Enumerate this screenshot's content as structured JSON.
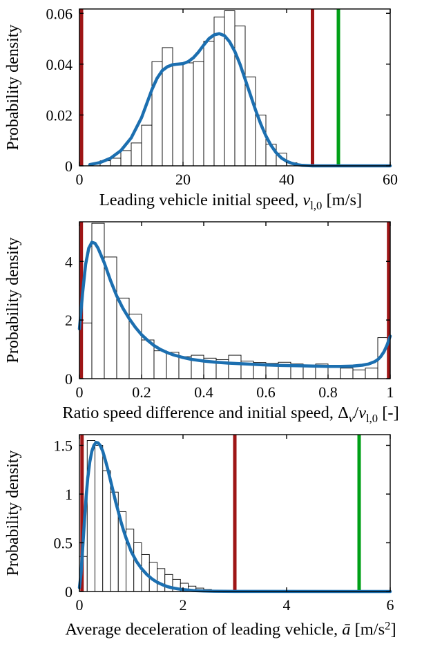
{
  "colors": {
    "kde": "#1c6fb0",
    "dark_red": "#9e1516",
    "green": "#00a017",
    "hist_fill": "#ffffff",
    "hist_stroke": "#000000",
    "axis": "#000000",
    "text": "#000000"
  },
  "chart_data": [
    {
      "type": "histogram+kde",
      "ylabel": "Probability density",
      "xlabel_segments": [
        {
          "t": "Leading vehicle initial speed, ",
          "s": "n"
        },
        {
          "t": "v",
          "s": "i"
        },
        {
          "t": "l,0",
          "s": "sub"
        },
        {
          "t": " [m/s]",
          "s": "n"
        }
      ],
      "xlim": [
        0,
        60
      ],
      "ylim": [
        0,
        0.0617
      ],
      "xticks": [
        0,
        20,
        40,
        60
      ],
      "xtick_labels": [
        "0",
        "20",
        "40",
        "60"
      ],
      "yticks": [
        0,
        0.02,
        0.04,
        0.06
      ],
      "ytick_labels": [
        "0",
        "0.02",
        "0.04",
        "0.06"
      ],
      "hist": {
        "bin_start": 2,
        "bin_width": 2,
        "values": [
          0.0008,
          0.002,
          0.003,
          0.006,
          0.009,
          0.016,
          0.041,
          0.0465,
          0.04,
          0.0405,
          0.041,
          0.049,
          0.0585,
          0.061,
          0.055,
          0.035,
          0.02,
          0.0085,
          0.005,
          0.0012
        ]
      },
      "kde": [
        [
          2,
          0.0005
        ],
        [
          4,
          0.0013
        ],
        [
          6,
          0.003
        ],
        [
          8,
          0.006
        ],
        [
          10,
          0.011
        ],
        [
          12,
          0.019
        ],
        [
          13,
          0.0245
        ],
        [
          14,
          0.03
        ],
        [
          15,
          0.0345
        ],
        [
          16,
          0.0375
        ],
        [
          17,
          0.039
        ],
        [
          18,
          0.0398
        ],
        [
          19,
          0.04
        ],
        [
          20,
          0.0402
        ],
        [
          21,
          0.041
        ],
        [
          22,
          0.0425
        ],
        [
          23,
          0.0448
        ],
        [
          24,
          0.0475
        ],
        [
          25,
          0.05
        ],
        [
          26,
          0.0515
        ],
        [
          27,
          0.052
        ],
        [
          28,
          0.0512
        ],
        [
          29,
          0.0488
        ],
        [
          30,
          0.045
        ],
        [
          31,
          0.04
        ],
        [
          32,
          0.034
        ],
        [
          33,
          0.028
        ],
        [
          34,
          0.022
        ],
        [
          35,
          0.0165
        ],
        [
          36,
          0.0118
        ],
        [
          37,
          0.008
        ],
        [
          38,
          0.0051
        ],
        [
          39,
          0.0031
        ],
        [
          40,
          0.0018
        ],
        [
          41,
          0.001
        ],
        [
          42,
          0.0005
        ],
        [
          43,
          0.0002
        ],
        [
          44,
          0.0001
        ],
        [
          45,
          0
        ],
        [
          60,
          0
        ]
      ],
      "vlines": [
        {
          "x": 0.4,
          "color": "dark_red"
        },
        {
          "x": 45,
          "color": "dark_red"
        },
        {
          "x": 50,
          "color": "green"
        }
      ]
    },
    {
      "type": "histogram+kde",
      "ylabel": "Probability density",
      "xlabel_segments": [
        {
          "t": "Ratio speed difference and initial speed, ",
          "s": "n"
        },
        {
          "t": "Δ",
          "s": "n"
        },
        {
          "t": "v",
          "s": "subi"
        },
        {
          "t": "/",
          "s": "n"
        },
        {
          "t": "v",
          "s": "i"
        },
        {
          "t": "l,0",
          "s": "sub"
        },
        {
          "t": " [-]",
          "s": "n"
        }
      ],
      "xlim": [
        0,
        1
      ],
      "ylim": [
        0,
        5.35
      ],
      "xticks": [
        0,
        0.2,
        0.4,
        0.6,
        0.8,
        1
      ],
      "xtick_labels": [
        "0",
        "0.2",
        "0.4",
        "0.6",
        "0.8",
        "1"
      ],
      "yticks": [
        0,
        2,
        4
      ],
      "ytick_labels": [
        "0",
        "2",
        "4"
      ],
      "hist": {
        "bin_start": 0,
        "bin_width": 0.04,
        "values": [
          1.9,
          5.3,
          4.15,
          2.75,
          2.2,
          1.32,
          0.95,
          0.9,
          0.75,
          0.8,
          0.7,
          0.65,
          0.8,
          0.6,
          0.55,
          0.52,
          0.56,
          0.5,
          0.46,
          0.5,
          0.42,
          0.36,
          0.3,
          0.36,
          1.4
        ]
      },
      "kde": [
        [
          0,
          1.7
        ],
        [
          0.005,
          2.3
        ],
        [
          0.01,
          2.9
        ],
        [
          0.02,
          3.9
        ],
        [
          0.03,
          4.45
        ],
        [
          0.04,
          4.65
        ],
        [
          0.05,
          4.62
        ],
        [
          0.06,
          4.45
        ],
        [
          0.07,
          4.2
        ],
        [
          0.08,
          3.95
        ],
        [
          0.09,
          3.65
        ],
        [
          0.1,
          3.35
        ],
        [
          0.12,
          2.82
        ],
        [
          0.14,
          2.4
        ],
        [
          0.16,
          2.05
        ],
        [
          0.18,
          1.75
        ],
        [
          0.2,
          1.5
        ],
        [
          0.22,
          1.3
        ],
        [
          0.24,
          1.13
        ],
        [
          0.26,
          1.0
        ],
        [
          0.28,
          0.9
        ],
        [
          0.3,
          0.82
        ],
        [
          0.33,
          0.73
        ],
        [
          0.36,
          0.66
        ],
        [
          0.4,
          0.6
        ],
        [
          0.44,
          0.56
        ],
        [
          0.48,
          0.53
        ],
        [
          0.52,
          0.51
        ],
        [
          0.56,
          0.49
        ],
        [
          0.6,
          0.47
        ],
        [
          0.65,
          0.45
        ],
        [
          0.7,
          0.44
        ],
        [
          0.75,
          0.43
        ],
        [
          0.8,
          0.42
        ],
        [
          0.84,
          0.42
        ],
        [
          0.88,
          0.43
        ],
        [
          0.91,
          0.46
        ],
        [
          0.93,
          0.5
        ],
        [
          0.95,
          0.58
        ],
        [
          0.96,
          0.65
        ],
        [
          0.97,
          0.76
        ],
        [
          0.98,
          0.92
        ],
        [
          0.99,
          1.15
        ],
        [
          1.0,
          1.45
        ]
      ],
      "vlines": [
        {
          "x": 0.006,
          "color": "dark_red"
        },
        {
          "x": 0.995,
          "color": "dark_red"
        }
      ]
    },
    {
      "type": "histogram+kde",
      "ylabel": "Probability density",
      "xlabel_segments": [
        {
          "t": "Average deceleration of leading vehicle, ",
          "s": "n"
        },
        {
          "t": "ā",
          "s": "i"
        },
        {
          "t": " [m/s",
          "s": "n"
        },
        {
          "t": "2",
          "s": "sup"
        },
        {
          "t": "]",
          "s": "n"
        }
      ],
      "xlim": [
        0,
        6
      ],
      "ylim": [
        0,
        1.61
      ],
      "xticks": [
        0,
        2,
        4,
        6
      ],
      "xtick_labels": [
        "0",
        "2",
        "4",
        "6"
      ],
      "yticks": [
        0,
        0.5,
        1,
        1.5
      ],
      "ytick_labels": [
        "0",
        "0.5",
        "1",
        "1.5"
      ],
      "hist": {
        "bin_start": 0,
        "bin_width": 0.15,
        "values": [
          0.36,
          1.55,
          1.5,
          1.24,
          1.02,
          0.82,
          0.64,
          0.5,
          0.38,
          0.3,
          0.235,
          0.175,
          0.125,
          0.085,
          0.055,
          0.035,
          0.02,
          0.01
        ]
      },
      "kde": [
        [
          0,
          0.04
        ],
        [
          0.03,
          0.18
        ],
        [
          0.06,
          0.42
        ],
        [
          0.1,
          0.75
        ],
        [
          0.13,
          0.98
        ],
        [
          0.16,
          1.16
        ],
        [
          0.2,
          1.33
        ],
        [
          0.24,
          1.44
        ],
        [
          0.28,
          1.5
        ],
        [
          0.32,
          1.53
        ],
        [
          0.36,
          1.525
        ],
        [
          0.4,
          1.5
        ],
        [
          0.45,
          1.44
        ],
        [
          0.5,
          1.35
        ],
        [
          0.55,
          1.25
        ],
        [
          0.6,
          1.14
        ],
        [
          0.65,
          1.03
        ],
        [
          0.7,
          0.92
        ],
        [
          0.75,
          0.82
        ],
        [
          0.8,
          0.72
        ],
        [
          0.85,
          0.63
        ],
        [
          0.9,
          0.55
        ],
        [
          0.95,
          0.48
        ],
        [
          1.0,
          0.41
        ],
        [
          1.1,
          0.31
        ],
        [
          1.2,
          0.235
        ],
        [
          1.3,
          0.175
        ],
        [
          1.4,
          0.13
        ],
        [
          1.5,
          0.095
        ],
        [
          1.6,
          0.07
        ],
        [
          1.7,
          0.05
        ],
        [
          1.8,
          0.037
        ],
        [
          1.9,
          0.027
        ],
        [
          2.0,
          0.02
        ],
        [
          2.2,
          0.01
        ],
        [
          2.4,
          0.005
        ],
        [
          2.6,
          0.003
        ],
        [
          2.8,
          0.0015
        ],
        [
          3.0,
          0.001
        ],
        [
          3.5,
          0.0005
        ],
        [
          6,
          0.0003
        ]
      ],
      "vlines": [
        {
          "x": 0.05,
          "color": "dark_red"
        },
        {
          "x": 3,
          "color": "dark_red"
        },
        {
          "x": 5.4,
          "color": "green"
        }
      ]
    }
  ]
}
